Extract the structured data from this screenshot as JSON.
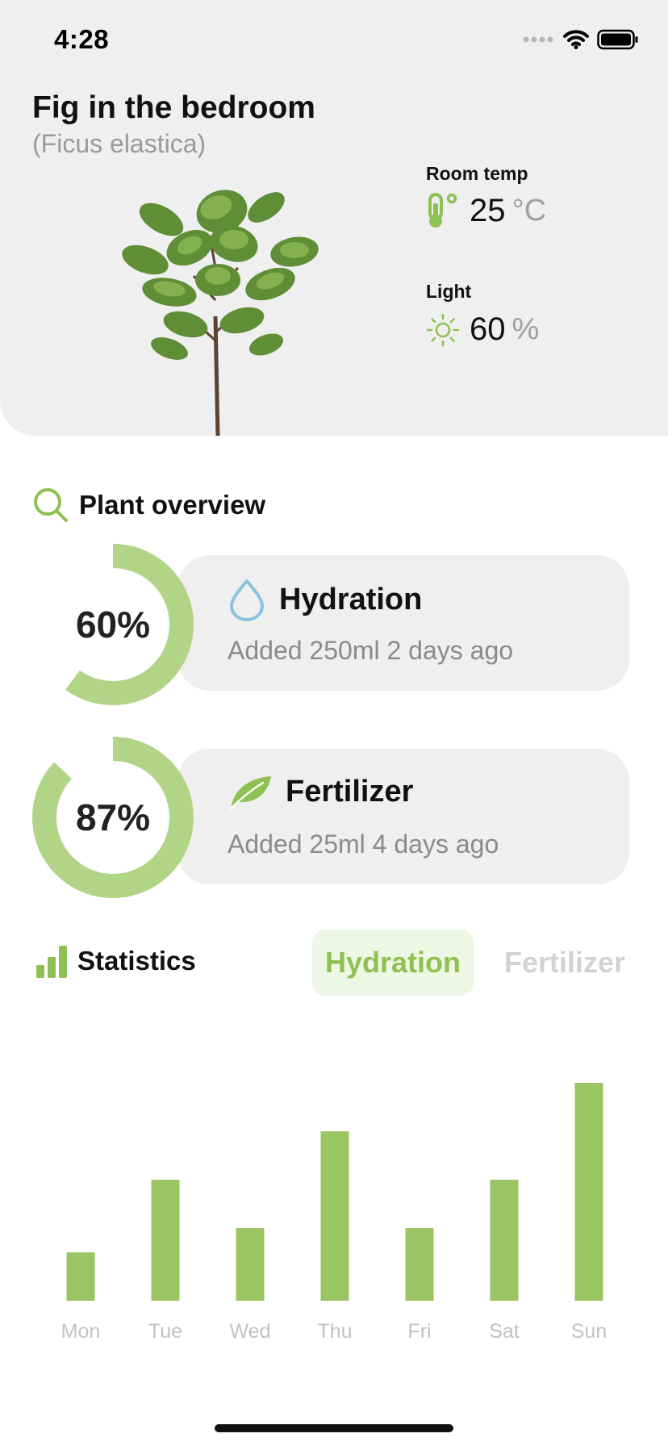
{
  "status_bar": {
    "time": "4:28"
  },
  "plant": {
    "name": "Fig in the bedroom",
    "scientific_name": "(Ficus elastica)"
  },
  "metrics": {
    "temp": {
      "label": "Room temp",
      "value": "25",
      "unit": "°C"
    },
    "light": {
      "label": "Light",
      "value": "60",
      "unit": "%"
    }
  },
  "overview": {
    "title": "Plant overview",
    "items": [
      {
        "percent_label": "60%",
        "percent": 60,
        "title": "Hydration",
        "subtitle": "Added 250ml 2 days ago",
        "icon": "water-drop-icon"
      },
      {
        "percent_label": "87%",
        "percent": 87,
        "title": "Fertilizer",
        "subtitle": "Added 25ml 4 days ago",
        "icon": "leaf-icon"
      }
    ]
  },
  "statistics": {
    "title": "Statistics",
    "tabs": [
      {
        "label": "Hydration",
        "active": true
      },
      {
        "label": "Fertilizer",
        "active": false
      }
    ]
  },
  "colors": {
    "accent": "#8dc151",
    "ring": "#b2d487",
    "bar": "#9bc462",
    "drop": "#8ec3dc"
  },
  "chart_data": {
    "type": "bar",
    "categories": [
      "Mon",
      "Tue",
      "Wed",
      "Thu",
      "Fri",
      "Sat",
      "Sun"
    ],
    "values": [
      2,
      5,
      3,
      7,
      3,
      5,
      9
    ],
    "ylim": [
      0,
      10
    ],
    "grid": false
  }
}
